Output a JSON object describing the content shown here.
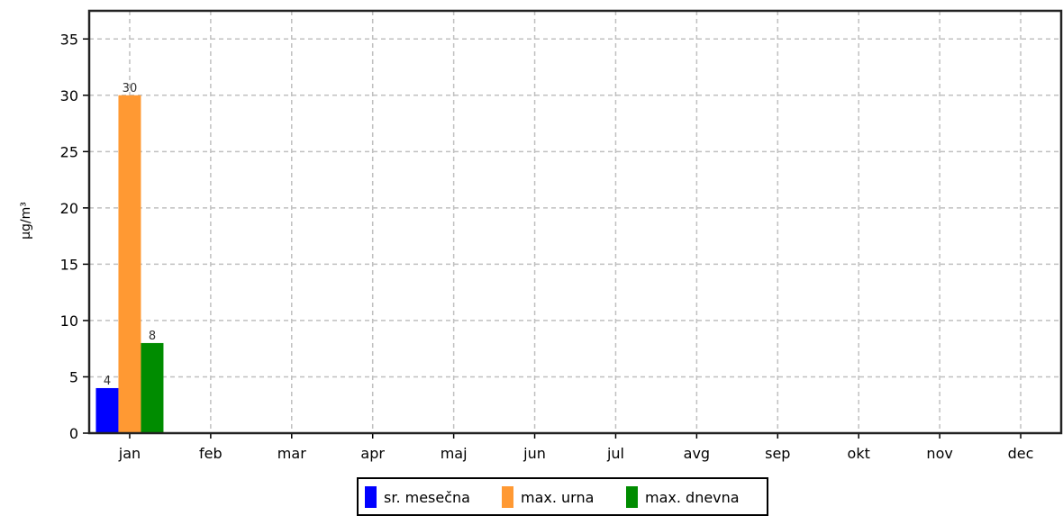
{
  "chart_data": {
    "type": "bar",
    "title": "",
    "xlabel": "",
    "ylabel": "µg/m³",
    "ylim": [
      0,
      37.5
    ],
    "yticks": [
      0,
      5,
      10,
      15,
      20,
      25,
      30,
      35
    ],
    "grid": true,
    "legend_position": "bottom-center",
    "categories": [
      "jan",
      "feb",
      "mar",
      "apr",
      "maj",
      "jun",
      "jul",
      "avg",
      "sep",
      "okt",
      "nov",
      "dec"
    ],
    "series": [
      {
        "name": "sr. mesečna",
        "color": "#0000ff",
        "values": [
          4,
          null,
          null,
          null,
          null,
          null,
          null,
          null,
          null,
          null,
          null,
          null
        ]
      },
      {
        "name": "max. urna",
        "color": "#ff9933",
        "values": [
          30,
          null,
          null,
          null,
          null,
          null,
          null,
          null,
          null,
          null,
          null,
          null
        ]
      },
      {
        "name": "max. dnevna",
        "color": "#008c00",
        "values": [
          8,
          null,
          null,
          null,
          null,
          null,
          null,
          null,
          null,
          null,
          null,
          null
        ]
      }
    ]
  }
}
